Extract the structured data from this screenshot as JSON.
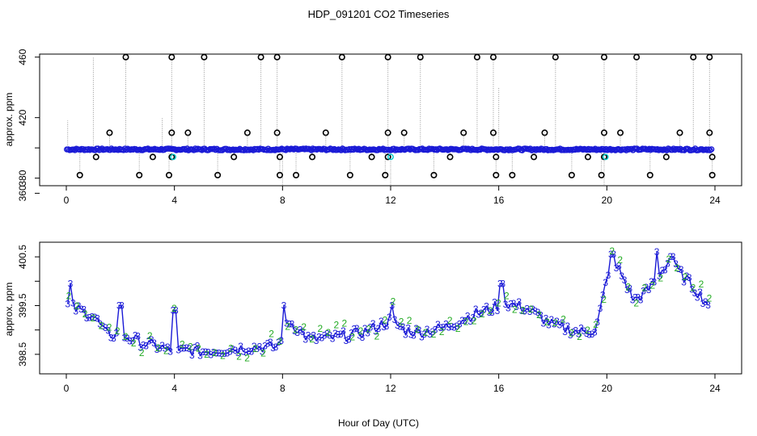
{
  "title": "HDP_091201  CO2 Timeseries",
  "x_label": "Hour of Day (UTC)",
  "chart_data": [
    {
      "type": "scatter",
      "name": "top-panel",
      "ylabel": "approx. ppm",
      "xlim": [
        0,
        24
      ],
      "ylim": [
        375,
        462
      ],
      "x_ticks": [
        0,
        4,
        8,
        12,
        16,
        20,
        24
      ],
      "y_ticks": [
        360,
        380,
        400,
        420,
        460
      ],
      "y_tick_labels": [
        "360",
        "380",
        "420",
        "460"
      ],
      "baseline_ppm": 399,
      "outlier_high_ppm": 460,
      "outlier_low_ppm": 382,
      "outlier_mid_ppm": 410,
      "outlier_midlow_ppm": 394,
      "outliers_high_x": [
        2.2,
        3.9,
        5.1,
        7.2,
        7.8,
        10.2,
        11.9,
        13.1,
        15.2,
        15.8,
        18.1,
        19.9,
        21.1,
        23.2,
        23.8
      ],
      "outliers_low_x": [
        0.5,
        2.7,
        3.8,
        5.6,
        7.9,
        8.5,
        10.5,
        11.8,
        13.6,
        15.9,
        16.5,
        18.7,
        19.8,
        21.6,
        23.9
      ],
      "outliers_mid_x": [
        1.6,
        3.9,
        4.5,
        6.7,
        7.8,
        9.6,
        11.9,
        12.5,
        14.7,
        15.8,
        17.7,
        19.9,
        20.5,
        22.7,
        23.8
      ],
      "outliers_midlow_x": [
        1.1,
        3.2,
        3.9,
        6.2,
        7.9,
        9.1,
        11.3,
        11.9,
        14.2,
        15.9,
        17.3,
        19.3,
        19.9,
        22.2,
        23.9
      ],
      "cyan_x": [
        3.95,
        12.0,
        19.95
      ],
      "series": [
        {
          "name": "baseline",
          "color": "#1a1ad6",
          "marker": "open-circle"
        },
        {
          "name": "outliers",
          "color": "#000000",
          "marker": "open-circle"
        },
        {
          "name": "flagged",
          "color": "#00cccc",
          "marker": "open-circle"
        }
      ]
    },
    {
      "type": "line",
      "name": "bottom-panel",
      "ylabel": "approx. ppm",
      "xlim": [
        0,
        24
      ],
      "ylim": [
        398.1,
        400.8
      ],
      "x_ticks": [
        0,
        4,
        8,
        12,
        16,
        20,
        24
      ],
      "y_ticks": [
        398.5,
        399.0,
        399.5,
        400.0,
        400.5
      ],
      "y_tick_labels": [
        "398.5",
        "399.5",
        "400.5"
      ],
      "marker_labels": [
        "3",
        "2"
      ],
      "series": [
        {
          "name": "3",
          "color": "#1a1ad6",
          "label": "3"
        },
        {
          "name": "2",
          "color": "#22aa22",
          "label": "2"
        }
      ],
      "key_x": [
        0.0,
        0.5,
        1.0,
        1.5,
        2.0,
        2.5,
        3.0,
        3.5,
        4.0,
        4.5,
        5.0,
        6.0,
        7.0,
        7.8,
        8.2,
        9.0,
        10.0,
        11.0,
        12.0,
        12.5,
        13.0,
        14.0,
        15.0,
        15.8,
        16.2,
        17.0,
        18.0,
        19.0,
        19.6,
        20.0,
        20.4,
        21.0,
        21.5,
        22.0,
        22.3,
        23.0,
        23.7
      ],
      "key_y": [
        399.5,
        399.4,
        399.3,
        398.9,
        398.9,
        398.8,
        398.7,
        398.65,
        398.5,
        398.6,
        398.55,
        398.6,
        398.65,
        398.65,
        399.2,
        398.8,
        398.85,
        398.95,
        399.2,
        399.0,
        398.95,
        399.05,
        399.3,
        399.45,
        399.55,
        399.45,
        399.1,
        398.95,
        399.0,
        400.05,
        400.3,
        399.6,
        399.8,
        400.2,
        400.4,
        400.0,
        399.55
      ],
      "spikes": [
        {
          "x": 0.15,
          "y": 399.95
        },
        {
          "x": 2.0,
          "y": 399.5
        },
        {
          "x": 4.0,
          "y": 399.4
        },
        {
          "x": 8.05,
          "y": 399.5
        },
        {
          "x": 12.05,
          "y": 399.5
        },
        {
          "x": 16.1,
          "y": 399.95
        },
        {
          "x": 20.2,
          "y": 400.55
        },
        {
          "x": 21.85,
          "y": 400.6
        },
        {
          "x": 22.4,
          "y": 400.5
        }
      ]
    }
  ]
}
